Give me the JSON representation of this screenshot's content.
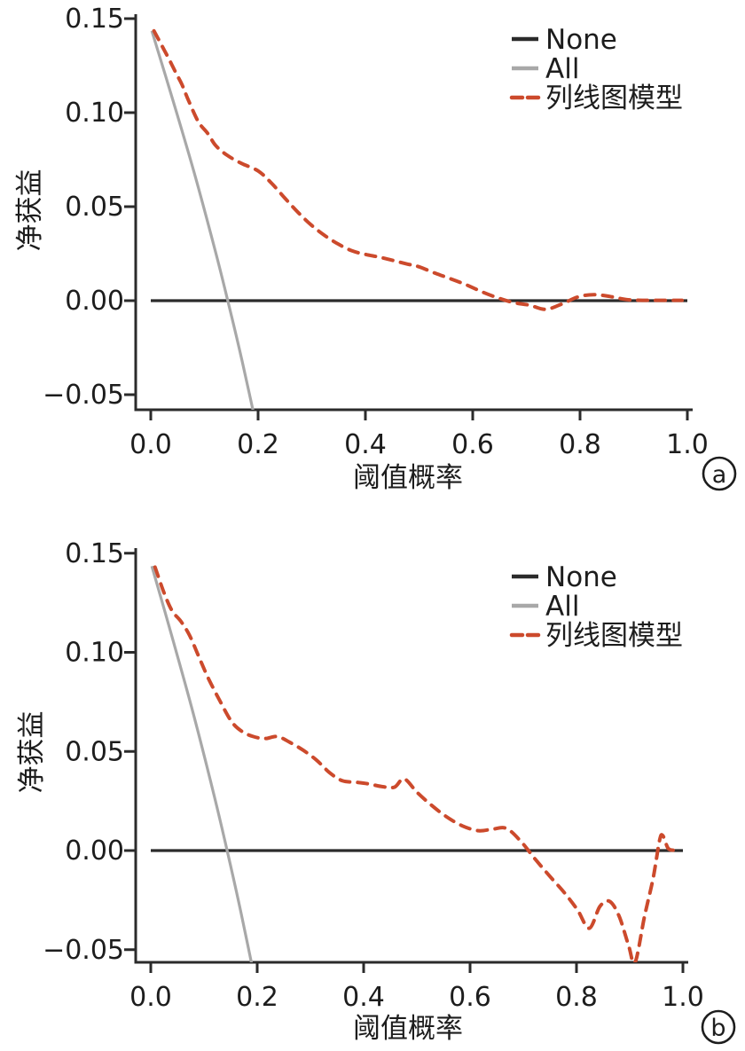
{
  "figure_title": "",
  "colors": {
    "background": "#ffffff",
    "axis": "#2b2b2b",
    "text": "#1d1d1d",
    "none_line": "#2b2b2b",
    "all_line": "#a8a8a8",
    "model_line": "#cc4a2c"
  },
  "chart_data": [
    {
      "type": "line",
      "panel_label": "a",
      "title": "",
      "xlabel": "阈值概率",
      "ylabel": "净获益",
      "xlim": [
        0,
        1
      ],
      "ylim": [
        -0.05,
        0.15
      ],
      "grid": false,
      "legend_position": "top-right",
      "x_ticks": {
        "values": [
          0.0,
          0.2,
          0.4,
          0.6,
          0.8,
          1.0
        ],
        "labels": [
          "0.0",
          "0.2",
          "0.4",
          "0.6",
          "0.8",
          "1.0"
        ]
      },
      "y_ticks": {
        "values": [
          0.15,
          0.1,
          0.05,
          0.0,
          -0.05
        ],
        "labels": [
          "0.15",
          "0.10",
          "0.05",
          "0.00",
          "−0.05"
        ]
      },
      "series": [
        {
          "key": "none",
          "name": "None",
          "color": "#2b2b2b",
          "style": "solid",
          "points": [
            [
              0.0,
              0.0
            ],
            [
              1.0,
              0.0
            ]
          ]
        },
        {
          "key": "all",
          "name": "All",
          "color": "#a8a8a8",
          "style": "solid",
          "points": [
            [
              0.002,
              0.1435
            ],
            [
              0.04,
              0.1078
            ],
            [
              0.08,
              0.069
            ],
            [
              0.12,
              0.0267
            ],
            [
              0.1435,
              0.0
            ],
            [
              0.17,
              -0.0319
            ],
            [
              0.2,
              -0.0707
            ]
          ]
        },
        {
          "key": "model",
          "name": "列线图模型",
          "color": "#cc4a2c",
          "style": "dashed",
          "points": [
            [
              0.006,
              0.1435
            ],
            [
              0.02,
              0.136
            ],
            [
              0.033,
              0.129
            ],
            [
              0.048,
              0.1205
            ],
            [
              0.058,
              0.115
            ],
            [
              0.071,
              0.106
            ],
            [
              0.089,
              0.095
            ],
            [
              0.106,
              0.089
            ],
            [
              0.121,
              0.0825
            ],
            [
              0.142,
              0.0774
            ],
            [
              0.169,
              0.073
            ],
            [
              0.2,
              0.069
            ],
            [
              0.225,
              0.0625
            ],
            [
              0.25,
              0.0545
            ],
            [
              0.275,
              0.0468
            ],
            [
              0.3,
              0.04
            ],
            [
              0.325,
              0.0345
            ],
            [
              0.35,
              0.03
            ],
            [
              0.375,
              0.0265
            ],
            [
              0.4,
              0.0246
            ],
            [
              0.425,
              0.0232
            ],
            [
              0.45,
              0.0215
            ],
            [
              0.476,
              0.0196
            ],
            [
              0.5,
              0.018
            ],
            [
              0.53,
              0.0146
            ],
            [
              0.56,
              0.0115
            ],
            [
              0.59,
              0.0082
            ],
            [
              0.618,
              0.0046
            ],
            [
              0.648,
              0.0014
            ],
            [
              0.676,
              -0.001
            ],
            [
              0.706,
              -0.0024
            ],
            [
              0.736,
              -0.0046
            ],
            [
              0.766,
              -0.0018
            ],
            [
              0.796,
              0.002
            ],
            [
              0.826,
              0.0032
            ],
            [
              0.856,
              0.0022
            ],
            [
              0.886,
              0.0006
            ],
            [
              0.916,
              0.0002
            ],
            [
              0.95,
              0.0002
            ],
            [
              0.99,
              0.0002
            ]
          ]
        }
      ]
    },
    {
      "type": "line",
      "panel_label": "b",
      "title": "",
      "xlabel": "阈值概率",
      "ylabel": "净获益",
      "xlim": [
        0,
        1
      ],
      "ylim": [
        -0.05,
        0.15
      ],
      "grid": false,
      "legend_position": "top-right",
      "x_ticks": {
        "values": [
          0.0,
          0.2,
          0.4,
          0.6,
          0.8,
          1.0
        ],
        "labels": [
          "0.0",
          "0.2",
          "0.4",
          "0.6",
          "0.8",
          "1.0"
        ]
      },
      "y_ticks": {
        "values": [
          0.15,
          0.1,
          0.05,
          0.0,
          -0.05
        ],
        "labels": [
          "0.15",
          "0.10",
          "0.05",
          "0.00",
          "−0.05"
        ]
      },
      "series": [
        {
          "key": "none",
          "name": "None",
          "color": "#2b2b2b",
          "style": "solid",
          "points": [
            [
              0.0,
              0.0
            ],
            [
              1.0,
              0.0
            ]
          ]
        },
        {
          "key": "all",
          "name": "All",
          "color": "#a8a8a8",
          "style": "solid",
          "points": [
            [
              0.002,
              0.1435
            ],
            [
              0.04,
              0.1078
            ],
            [
              0.08,
              0.069
            ],
            [
              0.12,
              0.0267
            ],
            [
              0.1435,
              0.0
            ],
            [
              0.17,
              -0.0319
            ],
            [
              0.2,
              -0.0707
            ]
          ]
        },
        {
          "key": "model",
          "name": "列线图模型",
          "color": "#cc4a2c",
          "style": "dashed",
          "points": [
            [
              0.008,
              0.143
            ],
            [
              0.025,
              0.13
            ],
            [
              0.04,
              0.121
            ],
            [
              0.057,
              0.1155
            ],
            [
              0.073,
              0.1085
            ],
            [
              0.09,
              0.098
            ],
            [
              0.108,
              0.087
            ],
            [
              0.13,
              0.0755
            ],
            [
              0.152,
              0.065
            ],
            [
              0.172,
              0.06
            ],
            [
              0.193,
              0.0575
            ],
            [
              0.215,
              0.0565
            ],
            [
              0.238,
              0.0575
            ],
            [
              0.262,
              0.0545
            ],
            [
              0.287,
              0.0505
            ],
            [
              0.312,
              0.0455
            ],
            [
              0.336,
              0.0393
            ],
            [
              0.36,
              0.0352
            ],
            [
              0.385,
              0.0345
            ],
            [
              0.41,
              0.0336
            ],
            [
              0.436,
              0.0322
            ],
            [
              0.458,
              0.032
            ],
            [
              0.476,
              0.0362
            ],
            [
              0.5,
              0.0295
            ],
            [
              0.526,
              0.0232
            ],
            [
              0.556,
              0.017
            ],
            [
              0.586,
              0.0124
            ],
            [
              0.616,
              0.01
            ],
            [
              0.642,
              0.0108
            ],
            [
              0.668,
              0.0112
            ],
            [
              0.695,
              0.0048
            ],
            [
              0.722,
              -0.0042
            ],
            [
              0.75,
              -0.013
            ],
            [
              0.778,
              -0.0215
            ],
            [
              0.802,
              -0.03
            ],
            [
              0.824,
              -0.0392
            ],
            [
              0.844,
              -0.0282
            ],
            [
              0.862,
              -0.0256
            ],
            [
              0.88,
              -0.033
            ],
            [
              0.898,
              -0.048
            ],
            [
              0.91,
              -0.0565
            ],
            [
              0.928,
              -0.033
            ],
            [
              0.944,
              -0.014
            ],
            [
              0.956,
              0.005
            ],
            [
              0.962,
              0.0076
            ],
            [
              0.972,
              0.0012
            ],
            [
              0.982,
              0.0002
            ],
            [
              0.992,
              0.0002
            ]
          ]
        }
      ]
    }
  ]
}
